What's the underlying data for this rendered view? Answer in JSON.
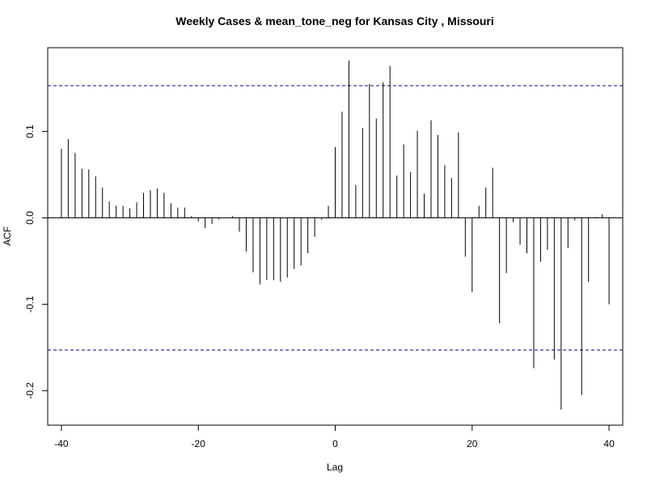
{
  "chart_data": {
    "type": "bar",
    "title": "Weekly Cases & mean_tone_neg for Kansas City , Missouri",
    "xlabel": "Lag",
    "ylabel": "ACF",
    "xlim": [
      -42,
      42
    ],
    "ylim": [
      -0.24,
      0.197
    ],
    "x_ticks": [
      -40,
      -20,
      0,
      20,
      40
    ],
    "y_ticks": [
      -0.2,
      -0.1,
      0.0,
      0.1
    ],
    "y_tick_labels": [
      "-0.2",
      "-0.1",
      "0.0",
      "0.1"
    ],
    "x_tick_labels": [
      "-40",
      "-20",
      "0",
      "20",
      "40"
    ],
    "ci": 0.153,
    "zero_line": true,
    "grid": false,
    "colors": {
      "bars": "#000000",
      "ci_line": "#00008B",
      "axes": "#000000"
    },
    "lags": [
      -40,
      -39,
      -38,
      -37,
      -36,
      -35,
      -34,
      -33,
      -32,
      -31,
      -30,
      -29,
      -28,
      -27,
      -26,
      -25,
      -24,
      -23,
      -22,
      -21,
      -20,
      -19,
      -18,
      -17,
      -16,
      -15,
      -14,
      -13,
      -12,
      -11,
      -10,
      -9,
      -8,
      -7,
      -6,
      -5,
      -4,
      -3,
      -2,
      -1,
      0,
      1,
      2,
      3,
      4,
      5,
      6,
      7,
      8,
      9,
      10,
      11,
      12,
      13,
      14,
      15,
      16,
      17,
      18,
      19,
      20,
      21,
      22,
      23,
      24,
      25,
      26,
      27,
      28,
      29,
      30,
      31,
      32,
      33,
      34,
      35,
      36,
      37,
      38,
      39,
      40
    ],
    "values": [
      0.08,
      0.091,
      0.075,
      0.057,
      0.056,
      0.048,
      0.035,
      0.019,
      0.014,
      0.014,
      0.011,
      0.018,
      0.029,
      0.032,
      0.034,
      0.029,
      0.017,
      0.012,
      0.012,
      0.002,
      -0.004,
      -0.012,
      -0.007,
      -0.002,
      0.0,
      0.002,
      -0.016,
      -0.039,
      -0.063,
      -0.077,
      -0.072,
      -0.072,
      -0.074,
      -0.069,
      -0.059,
      -0.055,
      -0.041,
      -0.022,
      -0.002,
      0.014,
      0.082,
      0.123,
      0.182,
      0.038,
      0.104,
      0.155,
      0.115,
      0.157,
      0.176,
      0.049,
      0.085,
      0.053,
      0.101,
      0.028,
      0.113,
      0.096,
      0.061,
      0.046,
      0.099,
      -0.045,
      -0.086,
      0.014,
      0.035,
      0.058,
      -0.122,
      -0.064,
      -0.005,
      -0.031,
      -0.041,
      -0.174,
      -0.051,
      -0.037,
      -0.164,
      -0.222,
      -0.035,
      -0.003,
      -0.205,
      -0.074,
      0.001,
      0.004,
      -0.1
    ]
  }
}
